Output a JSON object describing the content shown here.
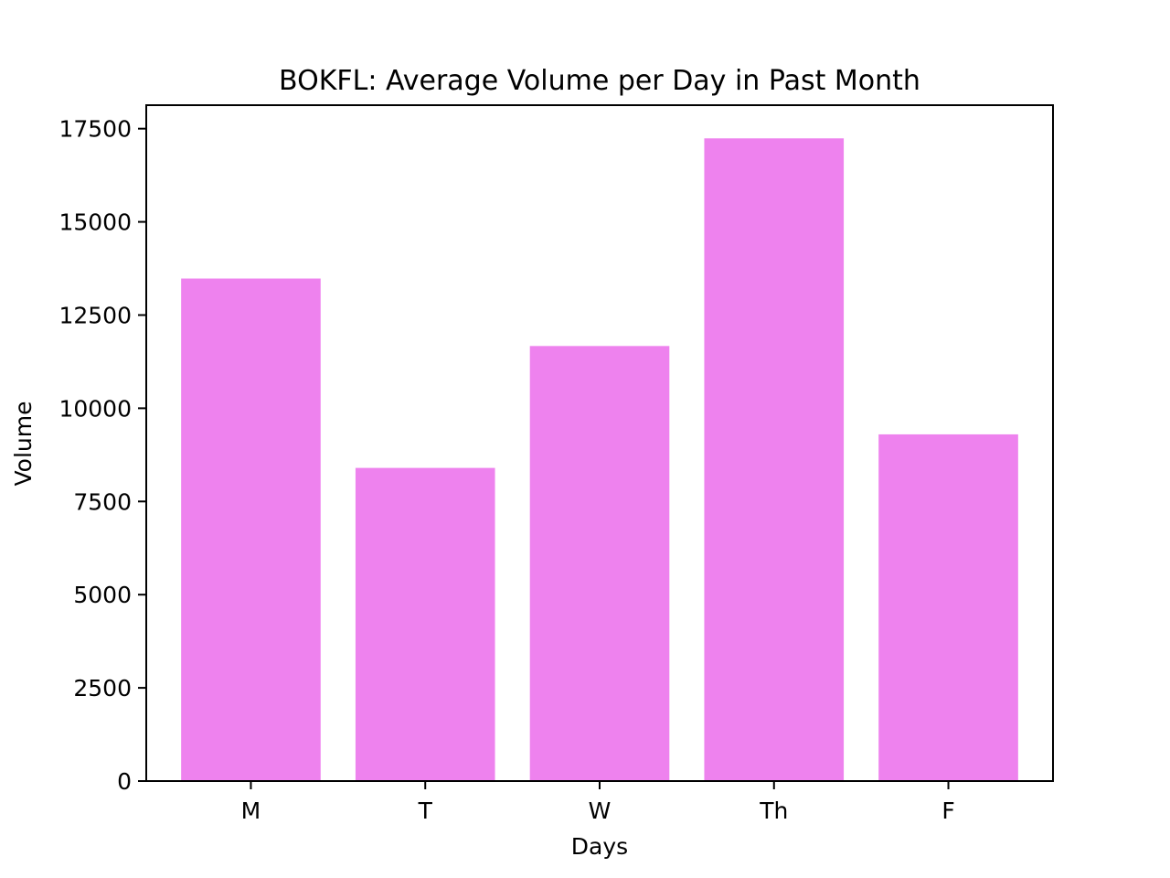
{
  "chart_data": {
    "type": "bar",
    "title": "BOKFL: Average Volume per Day in Past Month",
    "xlabel": "Days",
    "ylabel": "Volume",
    "categories": [
      "M",
      "T",
      "W",
      "Th",
      "F"
    ],
    "values": [
      13480,
      8400,
      11670,
      17240,
      9300
    ],
    "ylim": [
      0,
      18130
    ],
    "yticks": [
      0,
      2500,
      5000,
      7500,
      10000,
      12500,
      15000,
      17500
    ],
    "ytick_labels": [
      "0",
      "2500",
      "5000",
      "7500",
      "10000",
      "12500",
      "15000",
      "17500"
    ],
    "bar_color": "#ee82ee",
    "grid": false,
    "legend": "none"
  }
}
